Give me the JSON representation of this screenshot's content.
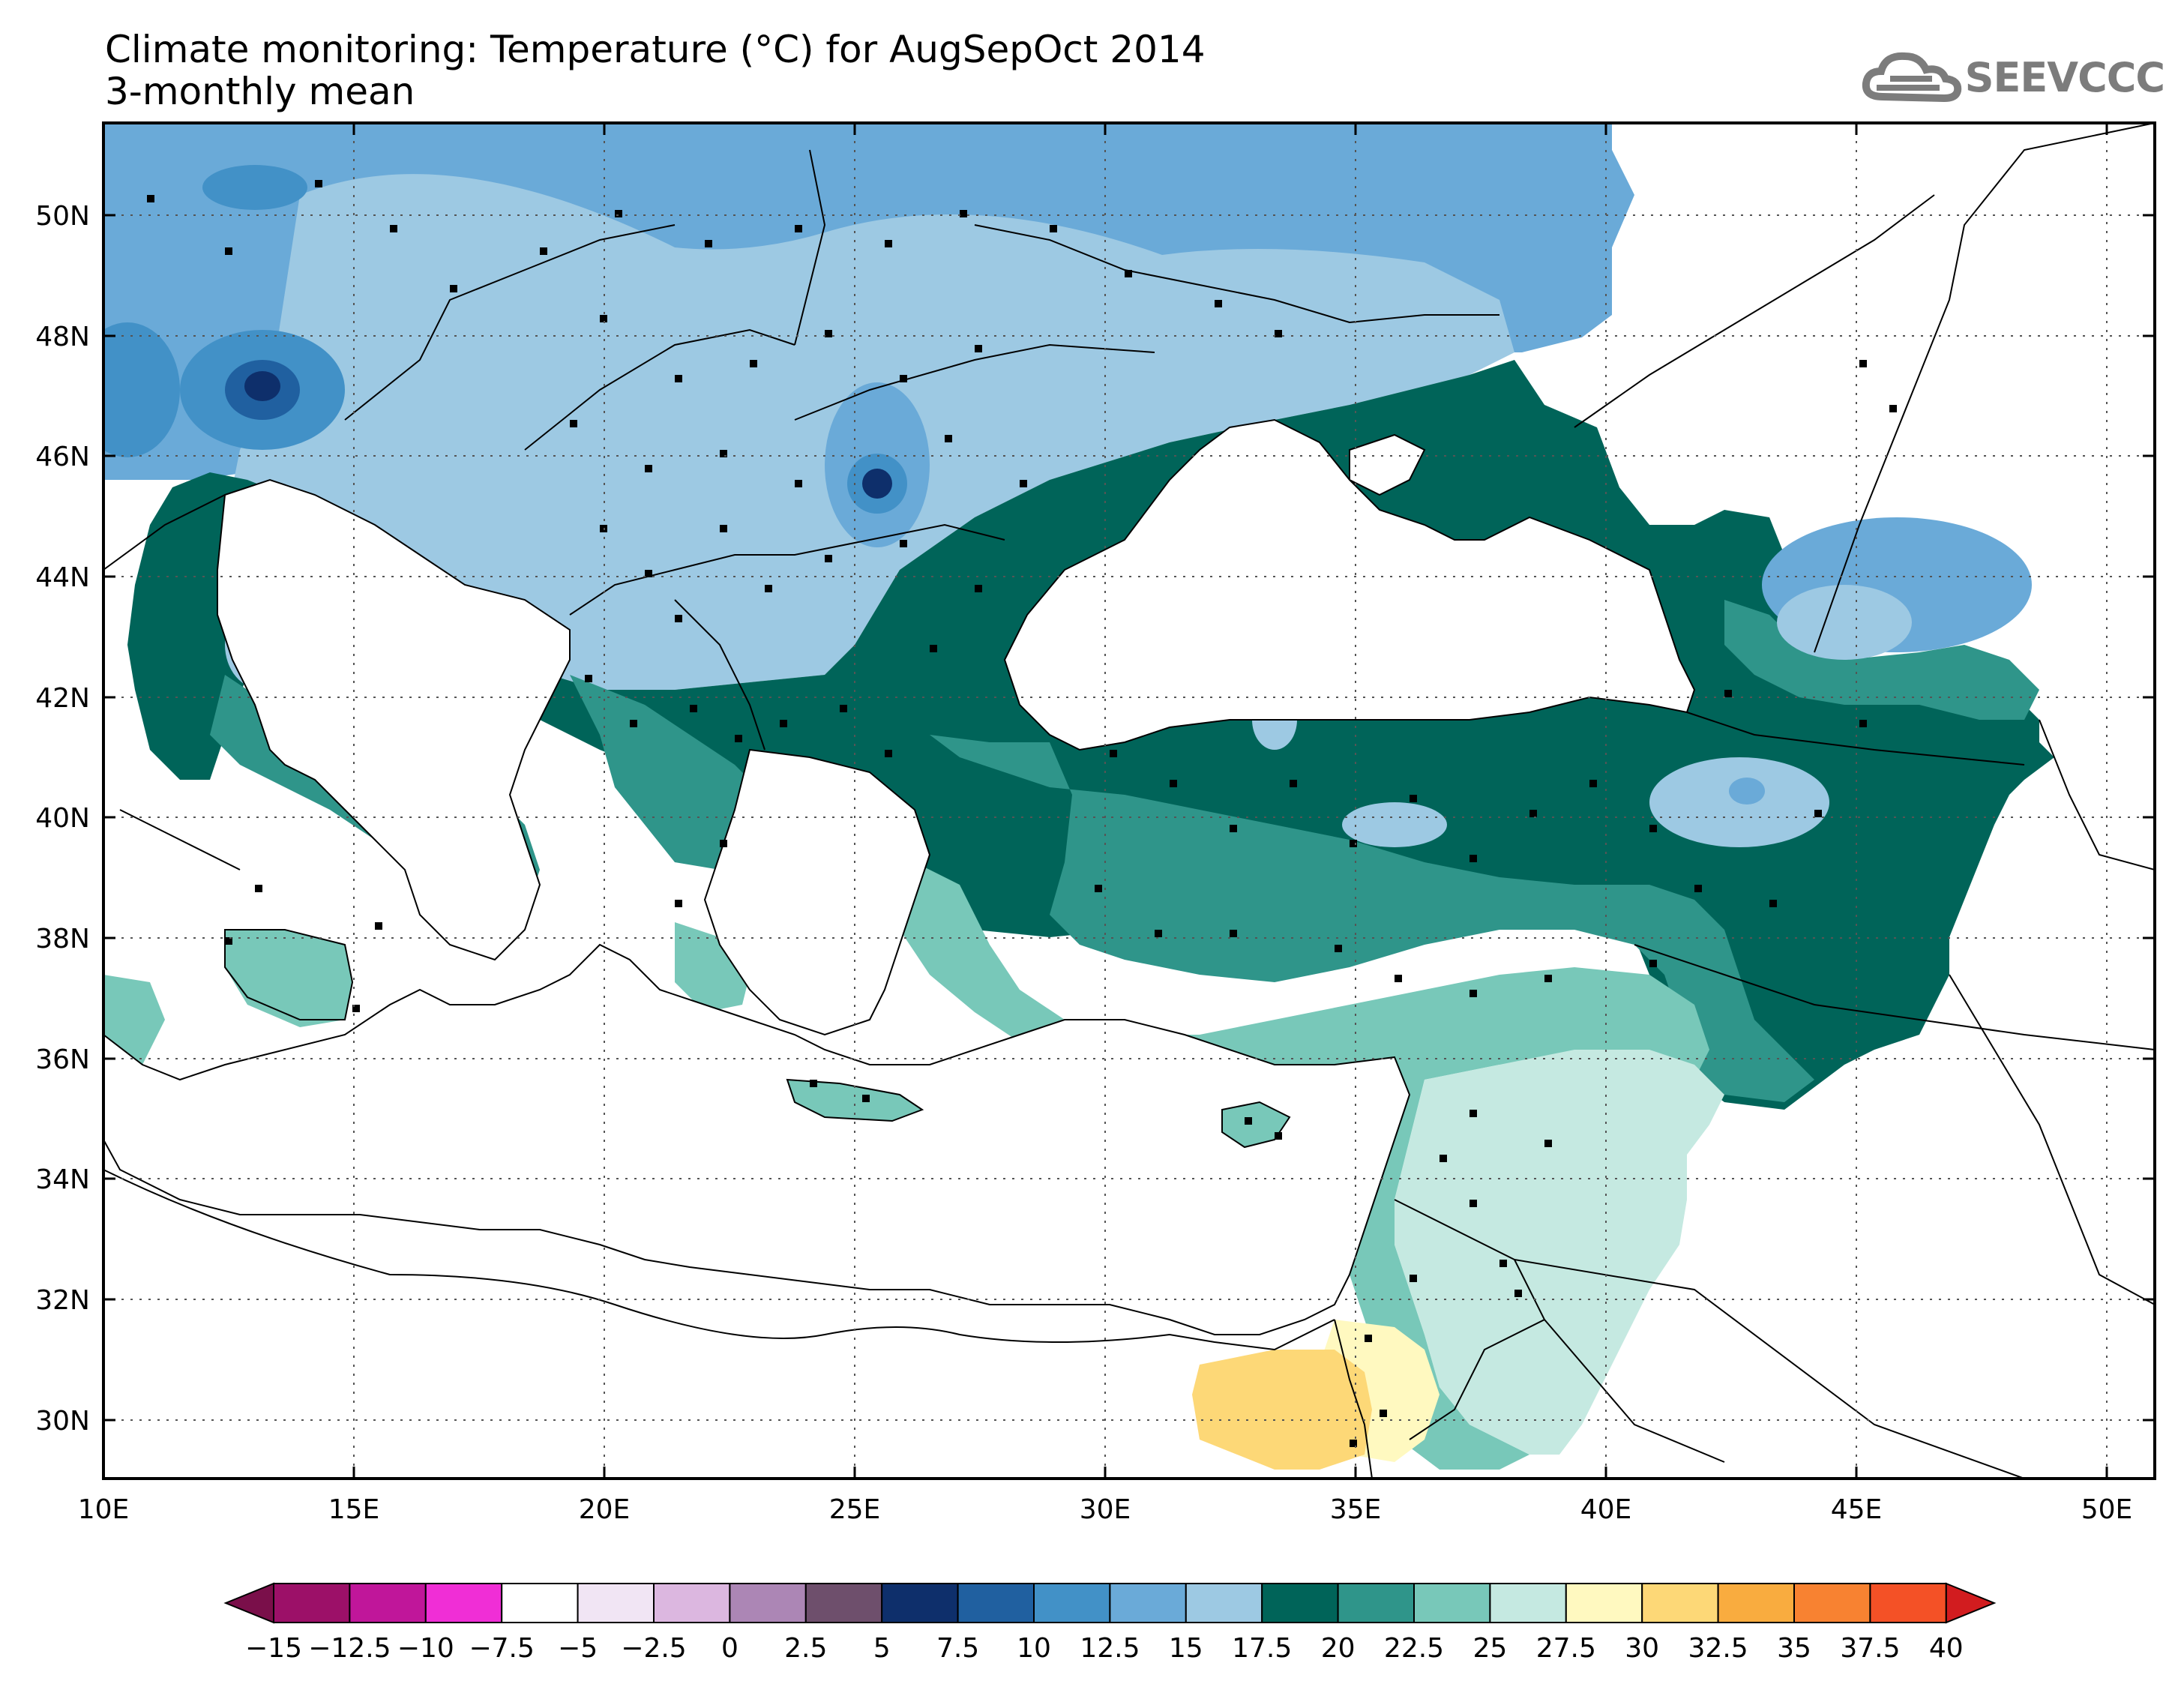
{
  "title": {
    "line1": "Climate monitoring: Temperature (°C) for AugSepOct 2014",
    "line2": "3-monthly mean"
  },
  "logo": {
    "text": "SEEVCCC",
    "icon": "cloud-logo-icon"
  },
  "map": {
    "lon_labels": [
      "10E",
      "15E",
      "20E",
      "25E",
      "30E",
      "35E",
      "40E",
      "45E",
      "50E"
    ],
    "lat_labels": [
      "50N",
      "48N",
      "46N",
      "44N",
      "42N",
      "40N",
      "38N",
      "36N",
      "34N",
      "32N",
      "30N"
    ],
    "lon_range": [
      10,
      51
    ],
    "lat_range": [
      29,
      51.5
    ],
    "grid": "dotted"
  },
  "colorbar": {
    "labels": [
      "-15",
      "-12.5",
      "-10",
      "-7.5",
      "-5",
      "-2.5",
      "0",
      "2.5",
      "5",
      "7.5",
      "10",
      "12.5",
      "15",
      "17.5",
      "20",
      "22.5",
      "25",
      "27.5",
      "30",
      "32.5",
      "35",
      "37.5",
      "40"
    ],
    "colors": [
      "#7a0f4a",
      "#9c1068",
      "#c0169a",
      "#f02ed6",
      "#ffffff",
      "#f1e5f4",
      "#dcb7e0",
      "#ac86b5",
      "#6e4f6c",
      "#0e2f6b",
      "#2060a0",
      "#4291c7",
      "#6aaad8",
      "#9dc9e3",
      "#006459",
      "#2f958a",
      "#78c8b9",
      "#c5e9e1",
      "#fff9c0",
      "#fdd877",
      "#f9ac3f",
      "#f88231",
      "#f45126",
      "#d21c1f"
    ]
  }
}
